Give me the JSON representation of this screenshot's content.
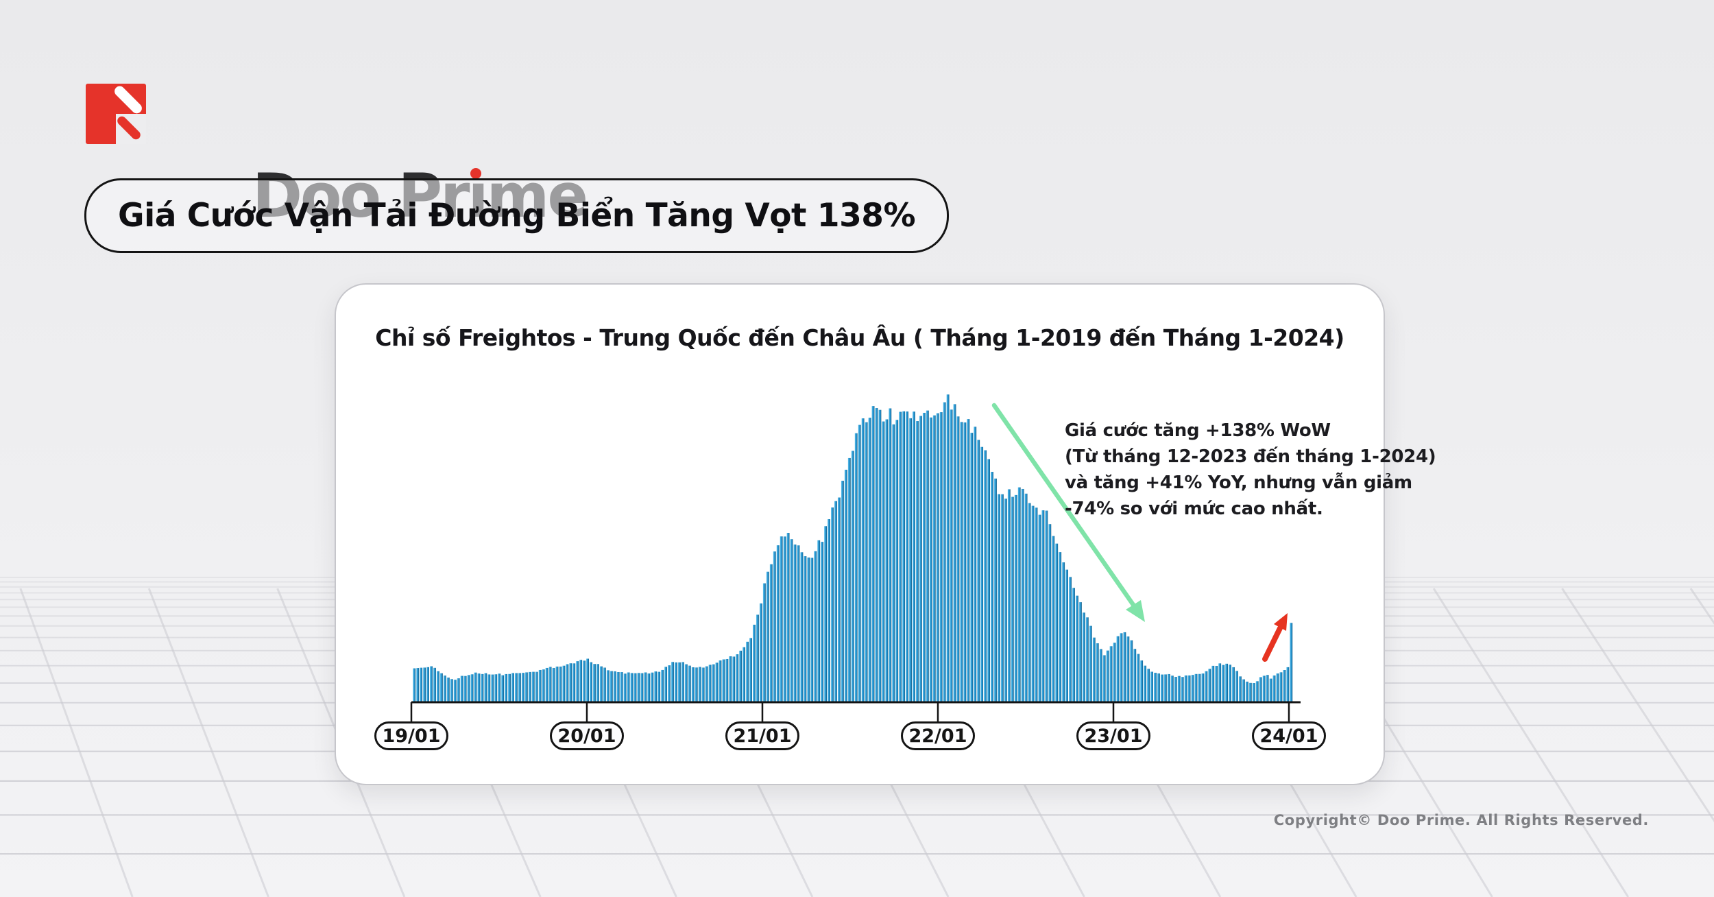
{
  "brand": {
    "name": "Doo Prime"
  },
  "headline": {
    "text": "Giá Cước Vận Tải Đường Biển Tăng Vọt 138%"
  },
  "card": {
    "chart_title": "Chỉ số Freightos - Trung Quốc đến Châu Âu ( Tháng 1-2019 đến Tháng 1-2024)",
    "annotation": {
      "lines": [
        "Giá cước tăng +138% WoW",
        "(Từ tháng 12-2023 đến tháng 1-2024)",
        "và tăng +41% YoY, nhưng vẫn giảm",
        "-74% so với mức cao nhất."
      ]
    }
  },
  "footer": {
    "copyright": "Copyright© Doo Prime. All Rights Reserved."
  },
  "chart_data": {
    "type": "bar",
    "title": "Chỉ số Freightos - Trung Quốc đến Châu Âu ( Tháng 1-2019 đến Tháng 1-2024)",
    "xlabel": "",
    "ylabel": "",
    "x_axis": {
      "tick_labels": [
        "19/01",
        "20/01",
        "21/01",
        "22/01",
        "23/01",
        "24/01"
      ]
    },
    "y_axis": {
      "visible": false,
      "range": [
        0,
        100
      ],
      "unit": "relative index (peak = 100)"
    },
    "grid": false,
    "legend": "none",
    "bar_count": 259,
    "series": [
      {
        "name": "Chỉ số Freightos (Trung Quốc → Châu Âu)",
        "x_unit": "years since 19/01",
        "points": [
          [
            0.02,
            11
          ],
          [
            0.07,
            11.7
          ],
          [
            0.11,
            11.9
          ],
          [
            0.16,
            10.3
          ],
          [
            0.2,
            8.5
          ],
          [
            0.24,
            7.3
          ],
          [
            0.29,
            8.7
          ],
          [
            0.36,
            9.6
          ],
          [
            0.44,
            9.4
          ],
          [
            0.52,
            9.2
          ],
          [
            0.61,
            9.6
          ],
          [
            0.71,
            10.1
          ],
          [
            0.81,
            11.7
          ],
          [
            0.91,
            12.8
          ],
          [
            1.0,
            14.2
          ],
          [
            1.05,
            12.8
          ],
          [
            1.12,
            10.8
          ],
          [
            1.2,
            9.8
          ],
          [
            1.28,
            9.6
          ],
          [
            1.36,
            9.8
          ],
          [
            1.43,
            10.5
          ],
          [
            1.49,
            13.3
          ],
          [
            1.55,
            13.0
          ],
          [
            1.61,
            11.4
          ],
          [
            1.67,
            11.7
          ],
          [
            1.73,
            12.8
          ],
          [
            1.79,
            14.4
          ],
          [
            1.84,
            15.3
          ],
          [
            1.89,
            17.4
          ],
          [
            1.93,
            21.1
          ],
          [
            1.96,
            26
          ],
          [
            1.99,
            32
          ],
          [
            2.01,
            38
          ],
          [
            2.04,
            45
          ],
          [
            2.08,
            51.5
          ],
          [
            2.12,
            56.5
          ],
          [
            2.16,
            54
          ],
          [
            2.2,
            51
          ],
          [
            2.24,
            48.5
          ],
          [
            2.27,
            47.5
          ],
          [
            2.31,
            51
          ],
          [
            2.35,
            56
          ],
          [
            2.39,
            62
          ],
          [
            2.44,
            70
          ],
          [
            2.48,
            79
          ],
          [
            2.53,
            87
          ],
          [
            2.58,
            93
          ],
          [
            2.63,
            95.5
          ],
          [
            2.67,
            96
          ],
          [
            2.72,
            95
          ],
          [
            2.78,
            94.5
          ],
          [
            2.84,
            95.5
          ],
          [
            2.9,
            96
          ],
          [
            2.95,
            96.5
          ],
          [
            3.01,
            95.5
          ],
          [
            3.06,
            100
          ],
          [
            3.1,
            96.5
          ],
          [
            3.15,
            94.5
          ],
          [
            3.19,
            92
          ],
          [
            3.23,
            89
          ],
          [
            3.26,
            85
          ],
          [
            3.3,
            78
          ],
          [
            3.33,
            72
          ],
          [
            3.38,
            69.5
          ],
          [
            3.43,
            69.5
          ],
          [
            3.48,
            70.5
          ],
          [
            3.52,
            67
          ],
          [
            3.56,
            63
          ],
          [
            3.59,
            64.5
          ],
          [
            3.62,
            63.5
          ],
          [
            3.65,
            57
          ],
          [
            3.69,
            50
          ],
          [
            3.73,
            44.5
          ],
          [
            3.77,
            38.5
          ],
          [
            3.81,
            33
          ],
          [
            3.85,
            28
          ],
          [
            3.88,
            23.5
          ],
          [
            3.92,
            18
          ],
          [
            3.95,
            15.5
          ],
          [
            3.99,
            18.5
          ],
          [
            4.02,
            21.5
          ],
          [
            4.05,
            23.3
          ],
          [
            4.08,
            22
          ],
          [
            4.11,
            19.5
          ],
          [
            4.14,
            16.5
          ],
          [
            4.17,
            12.5
          ],
          [
            4.21,
            10.3
          ],
          [
            4.26,
            9.4
          ],
          [
            4.31,
            9.2
          ],
          [
            4.36,
            8.5
          ],
          [
            4.41,
            8.7
          ],
          [
            4.47,
            9.2
          ],
          [
            4.52,
            9.8
          ],
          [
            4.57,
            11.9
          ],
          [
            4.62,
            12.8
          ],
          [
            4.67,
            12.4
          ],
          [
            4.7,
            11
          ],
          [
            4.73,
            7.8
          ],
          [
            4.77,
            6.6
          ],
          [
            4.81,
            6.2
          ],
          [
            4.84,
            8.5
          ],
          [
            4.87,
            9.2
          ],
          [
            4.9,
            7.8
          ],
          [
            4.93,
            9.4
          ],
          [
            4.96,
            10.3
          ],
          [
            4.99,
            11.2
          ],
          [
            4.995,
            11.5
          ],
          [
            5.005,
            26.1
          ]
        ]
      }
    ],
    "colors": {
      "bar": "#2B99D3",
      "bar_highlight": "#8ED9F5",
      "bar_shadow": "#0D4059",
      "axis": "#141414",
      "trend_down_arrow": "#7FE3A8",
      "spike_arrow": "#E63320",
      "brand_red": "#E5332A"
    }
  }
}
